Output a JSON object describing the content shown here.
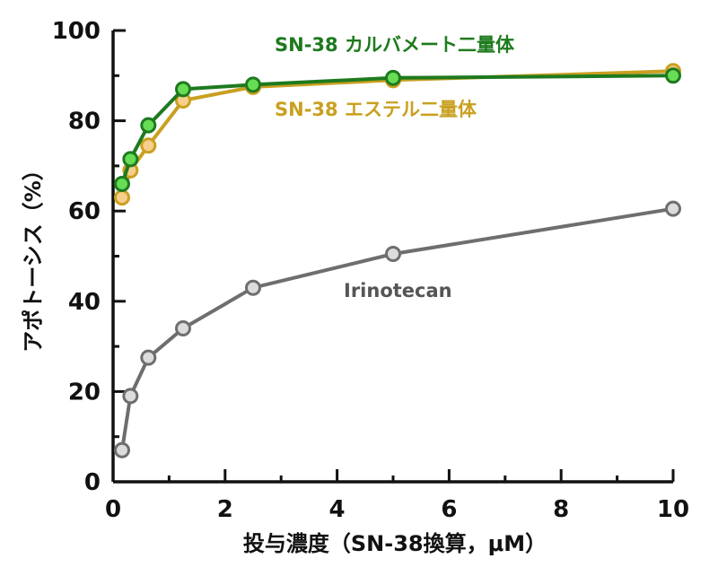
{
  "chart_data": {
    "type": "line",
    "xlabel": "投与濃度（SN-38換算，μM）",
    "ylabel": "アポトーシス（%）",
    "xlim": [
      0,
      10
    ],
    "ylim": [
      0,
      100
    ],
    "xticks": [
      0,
      2,
      4,
      6,
      8,
      10
    ],
    "yticks": [
      0,
      20,
      40,
      60,
      80,
      100
    ],
    "grid": false,
    "legend": "inline labels",
    "series": [
      {
        "name": "Irinotecan",
        "color": "#6e6e6e",
        "marker_fill": "#dcdcdc",
        "x": [
          0.16,
          0.31,
          0.63,
          1.25,
          2.5,
          5,
          10
        ],
        "y": [
          7,
          19,
          27.5,
          34,
          43,
          50.5,
          60.5
        ]
      },
      {
        "name": "SN-38 エステル二量体",
        "color": "#c9a020",
        "marker_fill": "#f6cf8c",
        "x": [
          0.16,
          0.31,
          0.63,
          1.25,
          2.5,
          5,
          10
        ],
        "y": [
          63,
          69,
          74.5,
          84.5,
          87.5,
          89,
          91
        ]
      },
      {
        "name": "SN-38 カルバメート二量体",
        "color": "#1e7a1e",
        "marker_fill": "#66dd55",
        "x": [
          0.16,
          0.31,
          0.63,
          1.25,
          2.5,
          5,
          10
        ],
        "y": [
          66,
          71.5,
          79,
          87,
          88,
          89.5,
          90
        ]
      }
    ]
  }
}
